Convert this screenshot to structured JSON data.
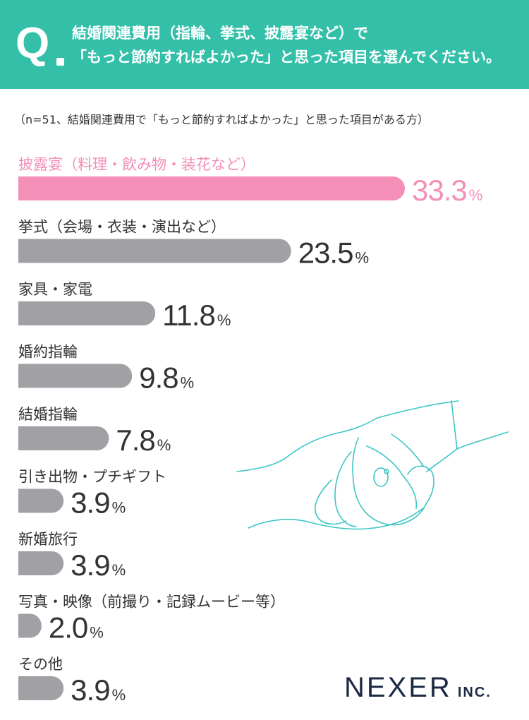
{
  "header": {
    "q_label": "Q",
    "question_line1": "結婚関連費用（指輪、挙式、披露宴など）で",
    "question_line2": "「もっと節約すればよかった」と思った項目を選んでください。"
  },
  "note": "（n=51、結婚関連費用で「もっと節約すればよかった」と思った項目がある方）",
  "brand": {
    "name": "NEXER",
    "suffix": "INC."
  },
  "colors": {
    "header": "#33bfa8",
    "highlight": "#f48fb8",
    "bar": "#a0a0a5",
    "text": "#333333",
    "illustration": "#3cc6c4"
  },
  "chart_data": {
    "type": "bar",
    "orientation": "horizontal",
    "unit": "%",
    "categories": [
      "披露宴（料理・飲み物・装花など）",
      "挙式（会場・衣装・演出など）",
      "家具・家電",
      "婚約指輪",
      "結婚指輪",
      "引き出物・プチギフト",
      "新婚旅行",
      "写真・映像（前撮り・記録ムービー等）",
      "その他"
    ],
    "values": [
      33.3,
      23.5,
      11.8,
      9.8,
      7.8,
      3.9,
      3.9,
      2.0,
      3.9
    ],
    "value_labels": [
      "33.3",
      "23.5",
      "11.8",
      "9.8",
      "7.8",
      "3.9",
      "3.9",
      "2.0",
      "3.9"
    ],
    "highlight_index": 0,
    "grid": false,
    "legend": "none"
  }
}
